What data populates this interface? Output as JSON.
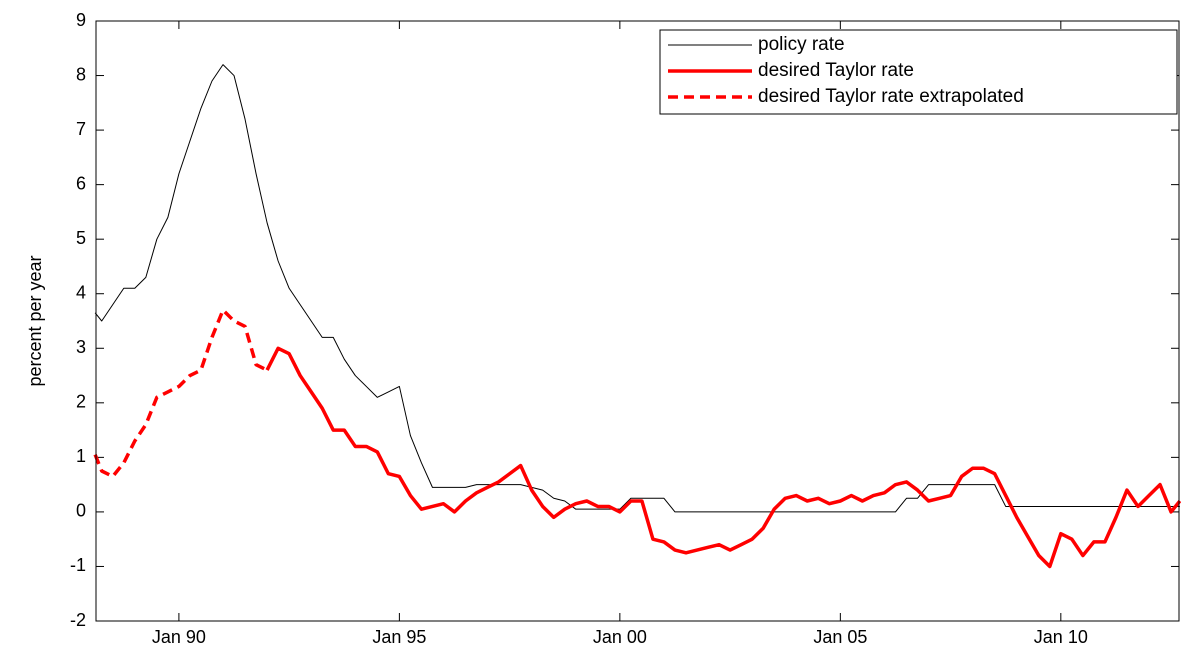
{
  "chart_data": {
    "type": "line",
    "y_label": "percent per year",
    "legend": "upper right",
    "xlim": [
      1988.12,
      2012.68
    ],
    "xticks": [
      {
        "value": 1990,
        "label": "Jan 90"
      },
      {
        "value": 1995,
        "label": "Jan 95"
      },
      {
        "value": 2000,
        "label": "Jan 00"
      },
      {
        "value": 2005,
        "label": "Jan 05"
      },
      {
        "value": 2010,
        "label": "Jan 10"
      }
    ],
    "ylim": [
      -2,
      9
    ],
    "yticks": [
      -2,
      -1,
      0,
      1,
      2,
      3,
      4,
      5,
      6,
      7,
      8,
      9
    ],
    "x": [
      1988.1,
      1988.25,
      1988.5,
      1988.75,
      1989,
      1989.25,
      1989.5,
      1989.75,
      1990,
      1990.25,
      1990.5,
      1990.75,
      1991,
      1991.25,
      1991.5,
      1991.75,
      1992,
      1992.25,
      1992.5,
      1992.75,
      1993,
      1993.25,
      1993.5,
      1993.75,
      1994,
      1994.25,
      1994.5,
      1994.75,
      1995,
      1995.25,
      1995.5,
      1995.75,
      1996,
      1996.25,
      1996.5,
      1996.75,
      1997,
      1997.25,
      1997.5,
      1997.75,
      1998,
      1998.25,
      1998.5,
      1998.75,
      1999,
      1999.25,
      1999.5,
      1999.75,
      2000,
      2000.25,
      2000.5,
      2000.75,
      2001,
      2001.25,
      2001.5,
      2001.75,
      2002,
      2002.25,
      2002.5,
      2002.75,
      2003,
      2003.25,
      2003.5,
      2003.75,
      2004,
      2004.25,
      2004.5,
      2004.75,
      2005,
      2005.25,
      2005.5,
      2005.75,
      2006,
      2006.25,
      2006.5,
      2006.75,
      2007,
      2007.25,
      2007.5,
      2007.75,
      2008,
      2008.25,
      2008.5,
      2008.75,
      2009,
      2009.25,
      2009.5,
      2009.75,
      2010,
      2010.25,
      2010.5,
      2010.75,
      2011,
      2011.25,
      2011.5,
      2011.75,
      2012,
      2012.25,
      2012.5,
      2012.7
    ],
    "series": [
      {
        "name": "policy rate",
        "color": "#000000",
        "line_style": "thin",
        "values": [
          3.65,
          3.5,
          3.8,
          4.1,
          4.1,
          4.3,
          5.0,
          5.4,
          6.2,
          6.8,
          7.4,
          7.9,
          8.2,
          8.0,
          7.2,
          6.2,
          5.3,
          4.6,
          4.1,
          3.8,
          3.5,
          3.2,
          3.2,
          2.8,
          2.5,
          2.3,
          2.1,
          2.2,
          2.3,
          1.4,
          0.9,
          0.45,
          0.45,
          0.45,
          0.45,
          0.5,
          0.5,
          0.5,
          0.5,
          0.5,
          0.45,
          0.4,
          0.25,
          0.2,
          0.05,
          0.05,
          0.05,
          0.05,
          0.05,
          0.25,
          0.25,
          0.25,
          0.25,
          0,
          0,
          0,
          0,
          0,
          0,
          0,
          0,
          0,
          0,
          0,
          0,
          0,
          0,
          0,
          0,
          0,
          0,
          0,
          0,
          0,
          0.25,
          0.25,
          0.5,
          0.5,
          0.5,
          0.5,
          0.5,
          0.5,
          0.5,
          0.1,
          0.1,
          0.1,
          0.1,
          0.1,
          0.1,
          0.1,
          0.1,
          0.1,
          0.1,
          0.1,
          0.1,
          0.1,
          0.1,
          0.1,
          0.1,
          0.1
        ]
      },
      {
        "name": "desired Taylor rate",
        "color": "#ff0000",
        "line_style": "thick",
        "values": [
          null,
          null,
          null,
          null,
          null,
          null,
          null,
          null,
          null,
          null,
          null,
          null,
          null,
          null,
          null,
          null,
          2.6,
          3.0,
          2.9,
          2.5,
          2.2,
          1.9,
          1.5,
          1.5,
          1.2,
          1.2,
          1.1,
          0.7,
          0.65,
          0.3,
          0.05,
          0.1,
          0.15,
          0.0,
          0.2,
          0.35,
          0.45,
          0.55,
          0.7,
          0.85,
          0.4,
          0.1,
          -0.1,
          0.05,
          0.15,
          0.2,
          0.1,
          0.1,
          0.0,
          0.2,
          0.2,
          -0.5,
          -0.55,
          -0.7,
          -0.75,
          -0.7,
          -0.65,
          -0.6,
          -0.7,
          -0.6,
          -0.5,
          -0.3,
          0.05,
          0.25,
          0.3,
          0.2,
          0.25,
          0.15,
          0.2,
          0.3,
          0.2,
          0.3,
          0.35,
          0.5,
          0.55,
          0.4,
          0.2,
          0.25,
          0.3,
          0.65,
          0.8,
          0.8,
          0.7,
          0.3,
          -0.1,
          -0.45,
          -0.8,
          -1.0,
          -0.4,
          -0.5,
          -0.8,
          -0.55,
          -0.55,
          -0.1,
          0.4,
          0.1,
          0.3,
          0.5,
          0.0,
          0.2
        ]
      },
      {
        "name": "desired Taylor rate extrapolated",
        "color": "#ff0000",
        "line_style": "dashed",
        "values": [
          1.05,
          0.75,
          0.65,
          0.9,
          1.3,
          1.6,
          2.1,
          2.2,
          2.3,
          2.5,
          2.6,
          3.2,
          3.7,
          3.5,
          3.4,
          2.7,
          2.6,
          null,
          null,
          null,
          null,
          null,
          null,
          null,
          null,
          null,
          null,
          null,
          null,
          null,
          null,
          null,
          null,
          null,
          null,
          null,
          null,
          null,
          null,
          null,
          null,
          null,
          null,
          null,
          null,
          null,
          null,
          null,
          null,
          null,
          null,
          null,
          null,
          null,
          null,
          null,
          null,
          null,
          null,
          null,
          null,
          null,
          null,
          null,
          null,
          null,
          null,
          null,
          null,
          null,
          null,
          null,
          null,
          null,
          null,
          null,
          null,
          null,
          null,
          null,
          null,
          null,
          null,
          null,
          null,
          null,
          null,
          null,
          null,
          null,
          null,
          null,
          null,
          null,
          null,
          null,
          null,
          null,
          null,
          null
        ]
      }
    ]
  }
}
